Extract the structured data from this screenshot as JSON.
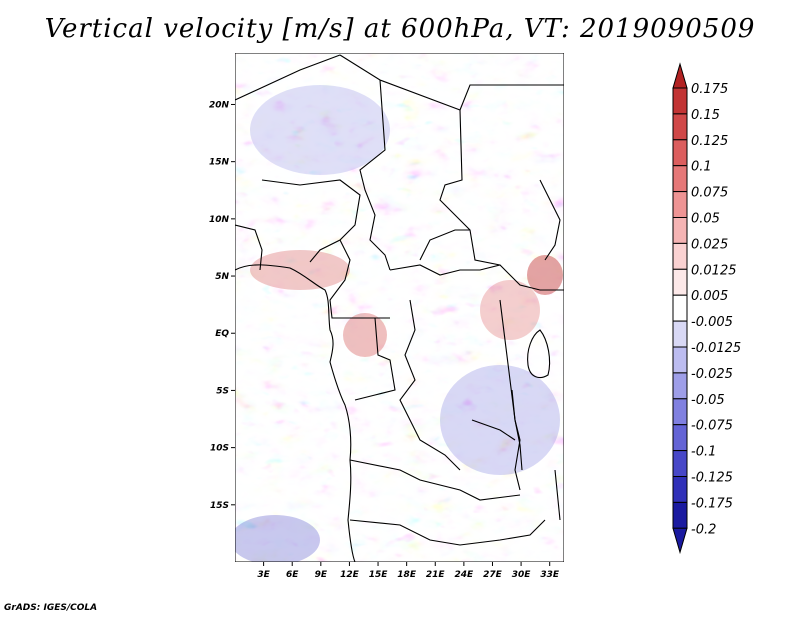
{
  "figure": {
    "title": "Vertical velocity [m/s] at 600hPa, VT: 2019090509",
    "credit": "GrADS: IGES/COLA"
  },
  "chart_data": {
    "type": "heatmap",
    "title": "Vertical velocity [m/s] at 600hPa, VT: 2019090509",
    "variable": "Vertical velocity",
    "units": "m/s",
    "level": "600hPa",
    "valid_time": "2019090509",
    "x_axis": {
      "ticks": [
        3,
        6,
        9,
        12,
        15,
        18,
        21,
        24,
        27,
        30,
        33
      ],
      "tick_labels": [
        "3E",
        "6E",
        "9E",
        "12E",
        "15E",
        "18E",
        "21E",
        "24E",
        "27E",
        "30E",
        "33E"
      ],
      "range": [
        0,
        34.5
      ]
    },
    "y_axis": {
      "ticks": [
        20,
        15,
        10,
        5,
        0,
        -5,
        -10,
        -15
      ],
      "tick_labels": [
        "20N",
        "15N",
        "10N",
        "5N",
        "EQ",
        "5S",
        "10S",
        "15S"
      ],
      "range": [
        -20,
        24.5
      ]
    },
    "colorbar": {
      "levels": [
        "0.175",
        "0.15",
        "0.125",
        "0.1",
        "0.075",
        "0.05",
        "0.025",
        "0.0125",
        "0.005",
        "-0.005",
        "-0.0125",
        "-0.025",
        "-0.05",
        "-0.075",
        "-0.1",
        "-0.125",
        "-0.175",
        "-0.2"
      ],
      "colors": [
        "#b22222",
        "#c23434",
        "#d04848",
        "#dc5e5e",
        "#e67878",
        "#ee9494",
        "#f5b4b4",
        "#fad2d2",
        "#fde9e9",
        "#ffffff",
        "#d8d8f5",
        "#bcbcf0",
        "#9e9ee8",
        "#8080e0",
        "#6464d6",
        "#4848c8",
        "#3030b8",
        "#1a1aa0"
      ]
    }
  }
}
